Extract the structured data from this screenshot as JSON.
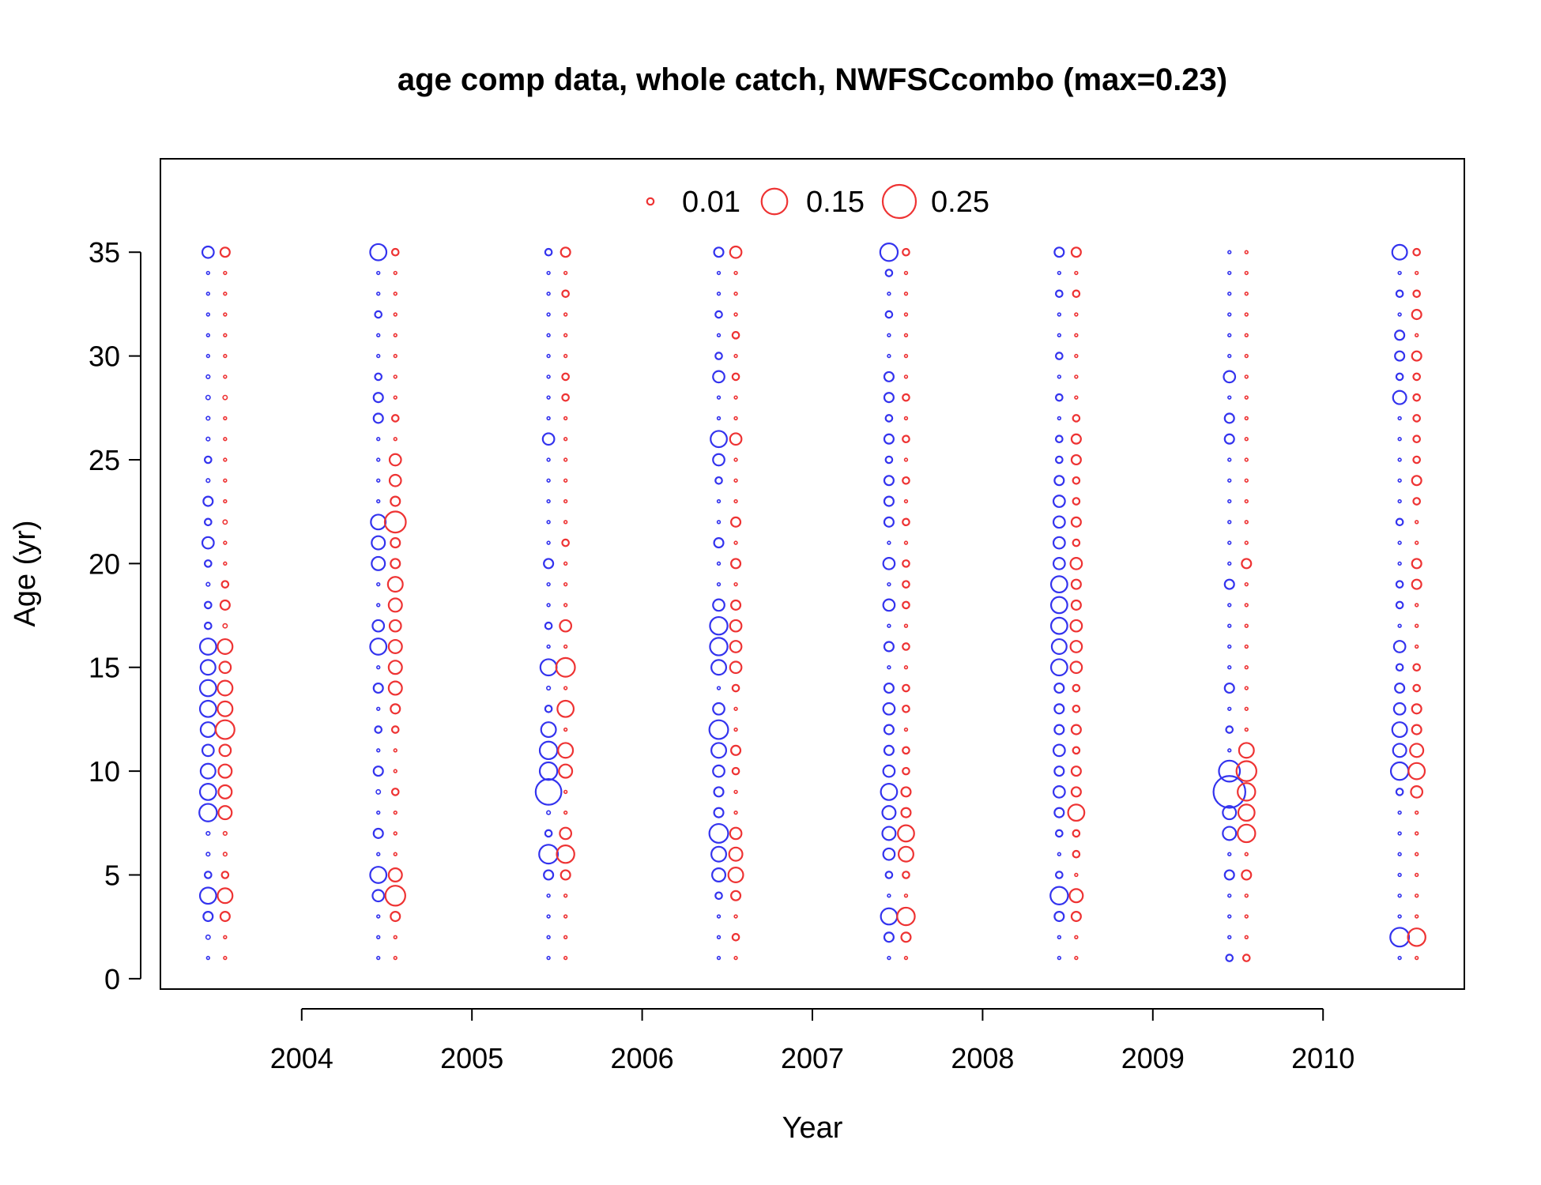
{
  "chart_data": {
    "type": "scatter",
    "title": "age comp data, whole catch, NWFSCcombo (max=0.23)",
    "xlabel": "Year",
    "ylabel": "Age (yr)",
    "xlim": [
      2003.17,
      2010.83
    ],
    "ylim": [
      -0.5,
      39.5
    ],
    "xticks": [
      2004,
      2005,
      2006,
      2007,
      2008,
      2009,
      2010
    ],
    "yticks": [
      0,
      5,
      10,
      15,
      20,
      25,
      30,
      35
    ],
    "grid": false,
    "legend": {
      "placement": "top",
      "entries": [
        {
          "label": "0.01",
          "value": 0.01
        },
        {
          "label": "0.15",
          "value": 0.15
        },
        {
          "label": "0.25",
          "value": 0.25
        }
      ]
    },
    "colors": {
      "female": "#3333ee",
      "male": "#ee3333"
    },
    "offset": 0.05,
    "series": [
      {
        "year": 2003.5,
        "female": {
          "1": 0.002,
          "2": 0.004,
          "3": 0.02,
          "4": 0.06,
          "5": 0.01,
          "6": 0.003,
          "7": 0.003,
          "8": 0.07,
          "9": 0.06,
          "10": 0.05,
          "11": 0.03,
          "12": 0.05,
          "13": 0.06,
          "14": 0.06,
          "15": 0.05,
          "16": 0.06,
          "17": 0.01,
          "18": 0.01,
          "19": 0.003,
          "20": 0.01,
          "21": 0.03,
          "22": 0.01,
          "23": 0.02,
          "24": 0.003,
          "25": 0.01,
          "26": 0.003,
          "27": 0.003,
          "28": 0.004,
          "29": 0.003,
          "30": 0.002,
          "31": 0.002,
          "32": 0.002,
          "33": 0.002,
          "34": 0.002,
          "35": 0.03
        },
        "male": {
          "1": 0.002,
          "2": 0.002,
          "3": 0.02,
          "4": 0.05,
          "5": 0.01,
          "6": 0.003,
          "7": 0.003,
          "8": 0.04,
          "9": 0.04,
          "10": 0.04,
          "11": 0.03,
          "12": 0.08,
          "13": 0.05,
          "14": 0.05,
          "15": 0.03,
          "16": 0.05,
          "17": 0.004,
          "18": 0.02,
          "19": 0.01,
          "20": 0.002,
          "21": 0.002,
          "22": 0.004,
          "23": 0.002,
          "24": 0.002,
          "25": 0.002,
          "26": 0.002,
          "27": 0.002,
          "28": 0.004,
          "29": 0.002,
          "30": 0.002,
          "31": 0.002,
          "32": 0.002,
          "33": 0.002,
          "34": 0.002,
          "35": 0.02
        }
      },
      {
        "year": 2004.5,
        "female": {
          "1": 0.002,
          "2": 0.002,
          "3": 0.002,
          "4": 0.03,
          "5": 0.06,
          "6": 0.002,
          "7": 0.02,
          "8": 0.002,
          "9": 0.004,
          "10": 0.02,
          "11": 0.002,
          "12": 0.01,
          "13": 0.002,
          "14": 0.02,
          "15": 0.002,
          "16": 0.06,
          "17": 0.03,
          "18": 0.002,
          "19": 0.002,
          "20": 0.04,
          "21": 0.04,
          "22": 0.05,
          "23": 0.002,
          "24": 0.002,
          "25": 0.002,
          "26": 0.002,
          "27": 0.02,
          "28": 0.02,
          "29": 0.01,
          "30": 0.002,
          "31": 0.002,
          "32": 0.01,
          "33": 0.002,
          "34": 0.002,
          "35": 0.06
        },
        "male": {
          "1": 0.002,
          "2": 0.002,
          "3": 0.02,
          "4": 0.09,
          "5": 0.04,
          "6": 0.002,
          "7": 0.002,
          "8": 0.002,
          "9": 0.01,
          "10": 0.002,
          "11": 0.002,
          "12": 0.01,
          "13": 0.02,
          "14": 0.04,
          "15": 0.04,
          "16": 0.04,
          "17": 0.03,
          "18": 0.04,
          "19": 0.05,
          "20": 0.02,
          "21": 0.02,
          "22": 0.1,
          "23": 0.02,
          "24": 0.03,
          "25": 0.03,
          "26": 0.002,
          "27": 0.01,
          "28": 0.002,
          "29": 0.002,
          "30": 0.002,
          "31": 0.002,
          "32": 0.002,
          "33": 0.002,
          "34": 0.002,
          "35": 0.01
        }
      },
      {
        "year": 2005.5,
        "female": {
          "1": 0.002,
          "2": 0.002,
          "3": 0.002,
          "4": 0.002,
          "5": 0.02,
          "6": 0.08,
          "7": 0.01,
          "8": 0.003,
          "9": 0.15,
          "10": 0.07,
          "11": 0.07,
          "12": 0.05,
          "13": 0.01,
          "14": 0.003,
          "15": 0.06,
          "16": 0.002,
          "17": 0.01,
          "18": 0.002,
          "19": 0.002,
          "20": 0.02,
          "21": 0.002,
          "22": 0.002,
          "23": 0.002,
          "24": 0.002,
          "25": 0.002,
          "26": 0.03,
          "27": 0.002,
          "28": 0.002,
          "29": 0.002,
          "30": 0.002,
          "31": 0.002,
          "32": 0.002,
          "33": 0.002,
          "34": 0.002,
          "35": 0.01
        },
        "male": {
          "1": 0.002,
          "2": 0.002,
          "3": 0.002,
          "4": 0.002,
          "5": 0.02,
          "6": 0.07,
          "7": 0.03,
          "8": 0.002,
          "9": 0.002,
          "10": 0.04,
          "11": 0.05,
          "12": 0.002,
          "13": 0.06,
          "14": 0.002,
          "15": 0.08,
          "16": 0.002,
          "17": 0.03,
          "18": 0.002,
          "19": 0.002,
          "20": 0.002,
          "21": 0.01,
          "22": 0.002,
          "23": 0.002,
          "24": 0.002,
          "25": 0.002,
          "26": 0.002,
          "27": 0.002,
          "28": 0.01,
          "29": 0.01,
          "30": 0.002,
          "31": 0.002,
          "32": 0.002,
          "33": 0.01,
          "34": 0.002,
          "35": 0.02
        }
      },
      {
        "year": 2006.5,
        "female": {
          "1": 0.002,
          "2": 0.002,
          "3": 0.002,
          "4": 0.01,
          "5": 0.04,
          "6": 0.05,
          "7": 0.08,
          "8": 0.02,
          "9": 0.02,
          "10": 0.03,
          "11": 0.05,
          "12": 0.08,
          "13": 0.03,
          "14": 0.002,
          "15": 0.05,
          "16": 0.07,
          "17": 0.07,
          "18": 0.03,
          "19": 0.002,
          "20": 0.002,
          "21": 0.02,
          "22": 0.002,
          "23": 0.002,
          "24": 0.01,
          "25": 0.03,
          "26": 0.06,
          "27": 0.002,
          "28": 0.002,
          "29": 0.03,
          "30": 0.01,
          "31": 0.002,
          "32": 0.01,
          "33": 0.002,
          "34": 0.002,
          "35": 0.02
        },
        "male": {
          "1": 0.002,
          "2": 0.01,
          "3": 0.002,
          "4": 0.02,
          "5": 0.05,
          "6": 0.04,
          "7": 0.03,
          "8": 0.002,
          "9": 0.002,
          "10": 0.01,
          "11": 0.02,
          "12": 0.002,
          "13": 0.002,
          "14": 0.01,
          "15": 0.03,
          "16": 0.03,
          "17": 0.03,
          "18": 0.02,
          "19": 0.002,
          "20": 0.02,
          "21": 0.002,
          "22": 0.02,
          "23": 0.002,
          "24": 0.002,
          "25": 0.002,
          "26": 0.03,
          "27": 0.002,
          "28": 0.002,
          "29": 0.01,
          "30": 0.002,
          "31": 0.01,
          "32": 0.002,
          "33": 0.002,
          "34": 0.002,
          "35": 0.03
        }
      },
      {
        "year": 2007.5,
        "female": {
          "1": 0.002,
          "2": 0.02,
          "3": 0.06,
          "4": 0.002,
          "5": 0.01,
          "6": 0.03,
          "7": 0.04,
          "8": 0.04,
          "9": 0.06,
          "10": 0.03,
          "11": 0.02,
          "12": 0.02,
          "13": 0.03,
          "14": 0.02,
          "15": 0.002,
          "16": 0.02,
          "17": 0.002,
          "18": 0.03,
          "19": 0.002,
          "20": 0.03,
          "21": 0.002,
          "22": 0.02,
          "23": 0.02,
          "24": 0.02,
          "25": 0.01,
          "26": 0.02,
          "27": 0.01,
          "28": 0.02,
          "29": 0.02,
          "30": 0.002,
          "31": 0.002,
          "32": 0.01,
          "33": 0.002,
          "34": 0.01,
          "35": 0.07
        },
        "male": {
          "1": 0.002,
          "2": 0.02,
          "3": 0.07,
          "4": 0.002,
          "5": 0.01,
          "6": 0.05,
          "7": 0.06,
          "8": 0.02,
          "9": 0.02,
          "10": 0.01,
          "11": 0.01,
          "12": 0.002,
          "13": 0.01,
          "14": 0.01,
          "15": 0.002,
          "16": 0.01,
          "17": 0.002,
          "18": 0.01,
          "19": 0.01,
          "20": 0.01,
          "21": 0.002,
          "22": 0.01,
          "23": 0.002,
          "24": 0.01,
          "25": 0.002,
          "26": 0.01,
          "27": 0.002,
          "28": 0.01,
          "29": 0.002,
          "30": 0.002,
          "31": 0.002,
          "32": 0.002,
          "33": 0.002,
          "34": 0.002,
          "35": 0.01
        }
      },
      {
        "year": 2008.5,
        "female": {
          "1": 0.002,
          "2": 0.002,
          "3": 0.02,
          "4": 0.07,
          "5": 0.01,
          "6": 0.002,
          "7": 0.01,
          "8": 0.02,
          "9": 0.03,
          "10": 0.02,
          "11": 0.03,
          "12": 0.02,
          "13": 0.02,
          "14": 0.02,
          "15": 0.06,
          "16": 0.05,
          "17": 0.06,
          "18": 0.06,
          "19": 0.06,
          "20": 0.03,
          "21": 0.03,
          "22": 0.03,
          "23": 0.03,
          "24": 0.02,
          "25": 0.01,
          "26": 0.01,
          "27": 0.002,
          "28": 0.01,
          "29": 0.002,
          "30": 0.01,
          "31": 0.002,
          "32": 0.002,
          "33": 0.01,
          "34": 0.002,
          "35": 0.02
        },
        "male": {
          "1": 0.002,
          "2": 0.002,
          "3": 0.02,
          "4": 0.04,
          "5": 0.002,
          "6": 0.01,
          "7": 0.01,
          "8": 0.06,
          "9": 0.02,
          "10": 0.02,
          "11": 0.01,
          "12": 0.02,
          "13": 0.01,
          "14": 0.01,
          "15": 0.03,
          "16": 0.03,
          "17": 0.03,
          "18": 0.02,
          "19": 0.02,
          "20": 0.03,
          "21": 0.01,
          "22": 0.02,
          "23": 0.01,
          "24": 0.01,
          "25": 0.02,
          "26": 0.02,
          "27": 0.01,
          "28": 0.002,
          "29": 0.002,
          "30": 0.002,
          "31": 0.002,
          "32": 0.002,
          "33": 0.01,
          "34": 0.002,
          "35": 0.02
        }
      },
      {
        "year": 2009.5,
        "female": {
          "1": 0.01,
          "2": 0.002,
          "3": 0.002,
          "4": 0.002,
          "5": 0.02,
          "6": 0.002,
          "7": 0.04,
          "8": 0.04,
          "9": 0.23,
          "10": 0.1,
          "11": 0.002,
          "12": 0.01,
          "13": 0.002,
          "14": 0.02,
          "15": 0.002,
          "16": 0.002,
          "17": 0.002,
          "18": 0.002,
          "19": 0.02,
          "20": 0.002,
          "21": 0.002,
          "22": 0.002,
          "23": 0.002,
          "24": 0.002,
          "25": 0.002,
          "26": 0.02,
          "27": 0.02,
          "28": 0.002,
          "29": 0.03,
          "30": 0.002,
          "31": 0.002,
          "32": 0.002,
          "33": 0.002,
          "34": 0.002,
          "35": 0.002
        },
        "male": {
          "1": 0.01,
          "2": 0.002,
          "3": 0.002,
          "4": 0.002,
          "5": 0.02,
          "6": 0.002,
          "7": 0.07,
          "8": 0.06,
          "9": 0.07,
          "10": 0.09,
          "11": 0.05,
          "12": 0.002,
          "13": 0.002,
          "14": 0.002,
          "15": 0.002,
          "16": 0.002,
          "17": 0.002,
          "18": 0.002,
          "19": 0.002,
          "20": 0.02,
          "21": 0.002,
          "22": 0.002,
          "23": 0.002,
          "24": 0.002,
          "25": 0.002,
          "26": 0.002,
          "27": 0.002,
          "28": 0.002,
          "29": 0.002,
          "30": 0.002,
          "31": 0.002,
          "32": 0.002,
          "33": 0.002,
          "34": 0.002,
          "35": 0.002
        }
      },
      {
        "year": 2010.5,
        "female": {
          "1": 0.002,
          "2": 0.08,
          "3": 0.002,
          "4": 0.002,
          "5": 0.002,
          "6": 0.002,
          "7": 0.002,
          "8": 0.002,
          "9": 0.01,
          "10": 0.07,
          "11": 0.04,
          "12": 0.05,
          "13": 0.03,
          "14": 0.02,
          "15": 0.01,
          "16": 0.03,
          "17": 0.002,
          "18": 0.01,
          "19": 0.01,
          "20": 0.002,
          "21": 0.002,
          "22": 0.01,
          "23": 0.002,
          "24": 0.002,
          "25": 0.002,
          "26": 0.002,
          "27": 0.002,
          "28": 0.04,
          "29": 0.01,
          "30": 0.02,
          "31": 0.02,
          "32": 0.002,
          "33": 0.01,
          "34": 0.002,
          "35": 0.05
        },
        "male": {
          "1": 0.002,
          "2": 0.07,
          "3": 0.002,
          "4": 0.002,
          "5": 0.002,
          "6": 0.002,
          "7": 0.002,
          "8": 0.002,
          "9": 0.03,
          "10": 0.06,
          "11": 0.04,
          "12": 0.02,
          "13": 0.02,
          "14": 0.01,
          "15": 0.01,
          "16": 0.002,
          "17": 0.002,
          "18": 0.002,
          "19": 0.02,
          "20": 0.02,
          "21": 0.002,
          "22": 0.002,
          "23": 0.01,
          "24": 0.02,
          "25": 0.01,
          "26": 0.01,
          "27": 0.01,
          "28": 0.01,
          "29": 0.01,
          "30": 0.02,
          "31": 0.002,
          "32": 0.02,
          "33": 0.01,
          "34": 0.002,
          "35": 0.01
        }
      }
    ]
  }
}
